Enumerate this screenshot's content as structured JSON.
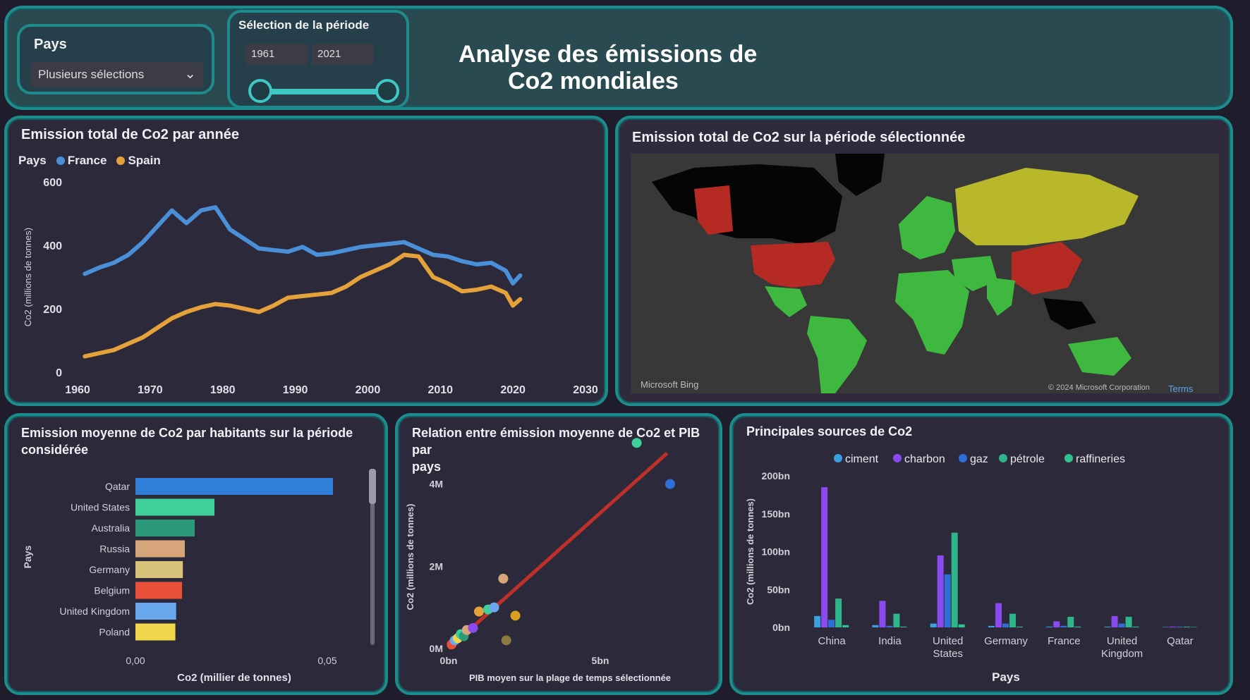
{
  "header": {
    "title_line1": "Analyse des émissions de",
    "title_line2": "Co2 mondiales",
    "country_slicer": {
      "label": "Pays",
      "value": "Plusieurs sélections"
    },
    "period_slicer": {
      "label": "Sélection de la période",
      "start": "1961",
      "end": "2021"
    }
  },
  "panels": {
    "line": {
      "title": "Emission total de Co2 par année"
    },
    "map": {
      "title": "Emission total de Co2 sur la période sélectionnée",
      "credit_left": "Microsoft Bing",
      "credit_right": "© 2024 Microsoft Corporation",
      "credit_link": "Terms"
    },
    "bar": {
      "title_line1": "Emission moyenne de Co2 par habitants sur la période",
      "title_line2": "considérée"
    },
    "scatter": {
      "title_line1": "Relation entre émission moyenne de Co2 et PIB par",
      "title_line2": "pays"
    },
    "column": {
      "title": "Principales sources de Co2"
    }
  },
  "colors": {
    "france": "#4a90d9",
    "spain": "#e6a23a",
    "teal": "#1e8c8c",
    "ciment": "#3aa0e0",
    "charbon": "#8a4af0",
    "gaz": "#2f6fd8",
    "petrole": "#2fb58a",
    "raffineries": "#2fc28f",
    "map_red": "#b52a22",
    "map_yellow": "#b8b82a",
    "map_green": "#3fb83f"
  },
  "chart_data": [
    {
      "type": "line",
      "title": "Emission total de Co2 par année",
      "legend_title": "Pays",
      "xlabel": "",
      "ylabel": "Co2 (millions de tonnes)",
      "xlim": [
        1960,
        2030
      ],
      "ylim": [
        0,
        600
      ],
      "x_ticks": [
        "1960",
        "1970",
        "1980",
        "1990",
        "2000",
        "2010",
        "2020",
        "2030"
      ],
      "y_ticks": [
        "0",
        "200",
        "400",
        "600"
      ],
      "legend_position": "top-left",
      "series": [
        {
          "name": "France",
          "x": [
            1961,
            1963,
            1965,
            1967,
            1969,
            1971,
            1973,
            1975,
            1977,
            1979,
            1981,
            1983,
            1985,
            1987,
            1989,
            1991,
            1993,
            1995,
            1997,
            1999,
            2001,
            2003,
            2005,
            2007,
            2009,
            2011,
            2013,
            2015,
            2017,
            2019,
            2020,
            2021
          ],
          "y": [
            310,
            330,
            345,
            370,
            410,
            460,
            510,
            470,
            510,
            520,
            450,
            420,
            390,
            385,
            380,
            395,
            370,
            375,
            385,
            395,
            400,
            405,
            410,
            390,
            370,
            365,
            350,
            340,
            345,
            320,
            280,
            305
          ]
        },
        {
          "name": "Spain",
          "x": [
            1961,
            1963,
            1965,
            1967,
            1969,
            1971,
            1973,
            1975,
            1977,
            1979,
            1981,
            1983,
            1985,
            1987,
            1989,
            1991,
            1993,
            1995,
            1997,
            1999,
            2001,
            2003,
            2005,
            2007,
            2009,
            2011,
            2013,
            2015,
            2017,
            2019,
            2020,
            2021
          ],
          "y": [
            50,
            60,
            70,
            90,
            110,
            140,
            170,
            190,
            205,
            215,
            210,
            200,
            190,
            210,
            235,
            240,
            245,
            250,
            270,
            300,
            320,
            340,
            370,
            365,
            300,
            280,
            255,
            260,
            270,
            250,
            210,
            230
          ]
        }
      ]
    },
    {
      "type": "bar",
      "title": "Emission moyenne de Co2 par habitants sur la période considérée",
      "orientation": "horizontal",
      "xlabel": "Co2 (millier de tonnes)",
      "ylabel": "Pays",
      "x_ticks": [
        "0,00",
        "0,05"
      ],
      "xlim": [
        0,
        0.05
      ],
      "categories": [
        "Qatar",
        "United States",
        "Australia",
        "Russia",
        "Germany",
        "Belgium",
        "United Kingdom",
        "Poland"
      ],
      "values": [
        0.05,
        0.02,
        0.015,
        0.0125,
        0.012,
        0.0118,
        0.0103,
        0.0101
      ],
      "bar_colors": [
        "#2f7fd8",
        "#3fcf9a",
        "#2a9a7a",
        "#d6a57a",
        "#d9c27a",
        "#e8503a",
        "#6aa8ee",
        "#f0d64a"
      ]
    },
    {
      "type": "scatter",
      "title": "Relation entre émission moyenne de Co2 et PIB par pays",
      "xlabel": "PIB moyen sur la plage de temps sélectionnée",
      "ylabel": "Co2 (millions de tonnes)",
      "x_ticks": [
        "0bn",
        "5bn"
      ],
      "y_ticks": [
        "0M",
        "2M",
        "4M"
      ],
      "xlim": [
        0,
        8
      ],
      "ylim": [
        0,
        4.8
      ],
      "points": [
        {
          "x": 0.1,
          "y": 0.1,
          "color": "#e8503a"
        },
        {
          "x": 0.2,
          "y": 0.2,
          "color": "#6aa8ee"
        },
        {
          "x": 0.3,
          "y": 0.25,
          "color": "#f0d64a"
        },
        {
          "x": 0.4,
          "y": 0.35,
          "color": "#3fcf9a"
        },
        {
          "x": 0.5,
          "y": 0.3,
          "color": "#2a9a7a"
        },
        {
          "x": 0.6,
          "y": 0.45,
          "color": "#d6a57a"
        },
        {
          "x": 0.8,
          "y": 0.5,
          "color": "#8a4af0"
        },
        {
          "x": 1.0,
          "y": 0.9,
          "color": "#e6a23a"
        },
        {
          "x": 1.3,
          "y": 0.95,
          "color": "#3fcf9a"
        },
        {
          "x": 1.5,
          "y": 1.0,
          "color": "#6aa8ee"
        },
        {
          "x": 1.8,
          "y": 1.7,
          "color": "#d6a57a"
        },
        {
          "x": 2.2,
          "y": 0.8,
          "color": "#d9a020"
        },
        {
          "x": 1.9,
          "y": 0.2,
          "color": "#8a7a40"
        },
        {
          "x": 6.2,
          "y": 5.0,
          "color": "#3fcf9a"
        },
        {
          "x": 7.3,
          "y": 4.0,
          "color": "#2f6fd8"
        }
      ],
      "trendline": {
        "x": [
          0,
          7.2
        ],
        "y": [
          0,
          4.75
        ],
        "color": "#c0302a"
      }
    },
    {
      "type": "bar",
      "title": "Principales sources de Co2",
      "xlabel": "Pays",
      "ylabel": "Co2 (millions de tonnes)",
      "y_ticks": [
        "0bn",
        "50bn",
        "100bn",
        "150bn",
        "200bn"
      ],
      "ylim": [
        0,
        200
      ],
      "categories": [
        "China",
        "India",
        "United States",
        "Germany",
        "France",
        "United Kingdom",
        "Qatar"
      ],
      "category_lines": [
        [
          "China"
        ],
        [
          "India"
        ],
        [
          "United",
          "States"
        ],
        [
          "Germany"
        ],
        [
          "France"
        ],
        [
          "United",
          "Kingdom"
        ],
        [
          "Qatar"
        ]
      ],
      "legend_position": "top",
      "series": [
        {
          "name": "ciment",
          "values": [
            15,
            3,
            5,
            2,
            1,
            1,
            0.5
          ]
        },
        {
          "name": "charbon",
          "values": [
            185,
            35,
            95,
            32,
            8,
            15,
            1
          ]
        },
        {
          "name": "gaz",
          "values": [
            10,
            2,
            70,
            5,
            2,
            5,
            1
          ]
        },
        {
          "name": "pétrole",
          "values": [
            38,
            18,
            125,
            18,
            14,
            14,
            1
          ]
        },
        {
          "name": "raffineries",
          "values": [
            3,
            1,
            4,
            1,
            1,
            1,
            0.5
          ]
        }
      ]
    }
  ]
}
